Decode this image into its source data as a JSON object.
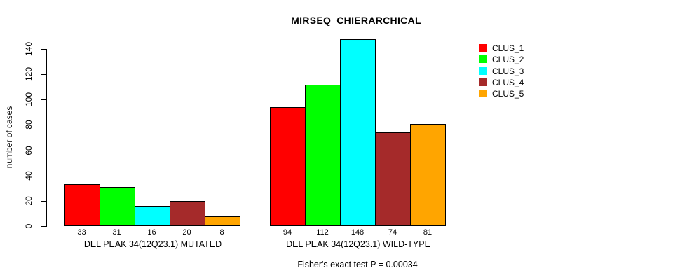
{
  "chart_data": {
    "type": "bar",
    "title": "MIRSEQ_CHIERARCHICAL",
    "ylabel": "number of cases",
    "xlabel": "",
    "ylim": [
      0,
      140
    ],
    "yticks": [
      0,
      20,
      40,
      60,
      80,
      100,
      120,
      140
    ],
    "grid": false,
    "legend_position": "top-right",
    "bar_value_labels": true,
    "categories": [
      "DEL PEAK 34(12Q23.1) MUTATED",
      "DEL PEAK 34(12Q23.1) WILD-TYPE"
    ],
    "series": [
      {
        "name": "CLUS_1",
        "color": "#FF0000",
        "values": [
          33,
          94
        ]
      },
      {
        "name": "CLUS_2",
        "color": "#00FF00",
        "values": [
          31,
          112
        ]
      },
      {
        "name": "CLUS_3",
        "color": "#00FFFF",
        "values": [
          16,
          148
        ]
      },
      {
        "name": "CLUS_4",
        "color": "#A52A2A",
        "values": [
          20,
          74
        ]
      },
      {
        "name": "CLUS_5",
        "color": "#FFA500",
        "values": [
          8,
          81
        ]
      }
    ],
    "footnote": "Fisher's exact test P = 0.00034",
    "axis_color": "#000000",
    "bar_border_color": "#000000"
  }
}
